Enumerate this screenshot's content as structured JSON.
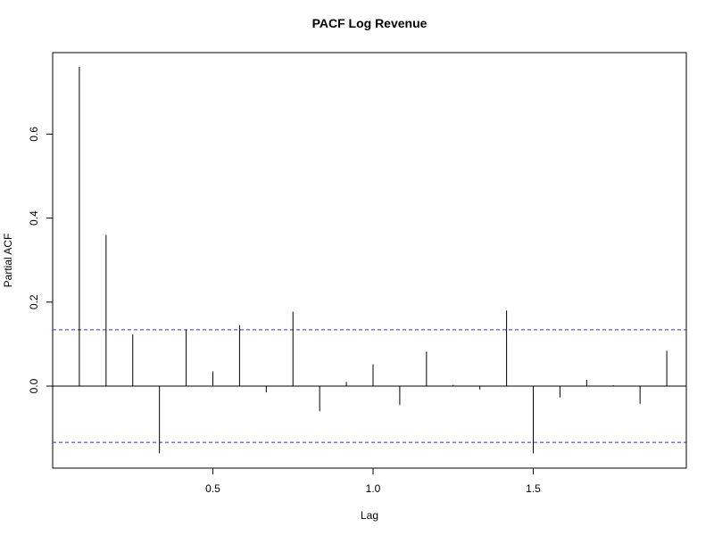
{
  "chart_data": {
    "type": "bar",
    "title": "PACF Log Revenue",
    "xlabel": "Lag",
    "ylabel": "Partial ACF",
    "xlim": [
      0.0,
      1.96
    ],
    "ylim": [
      -0.195,
      0.78
    ],
    "x_ticks": [
      0.5,
      1.0,
      1.5
    ],
    "x_tick_labels": [
      "0.5",
      "1.0",
      "1.5"
    ],
    "y_ticks": [
      0.0,
      0.2,
      0.4,
      0.6
    ],
    "y_tick_labels": [
      "0.0",
      "0.2",
      "0.4",
      "0.6"
    ],
    "confidence_bound": 0.134,
    "bound_color": "#3333cc",
    "line_color": "#000000",
    "grid": false,
    "x": [
      0.0833,
      0.1667,
      0.25,
      0.3333,
      0.4167,
      0.5,
      0.5833,
      0.6667,
      0.75,
      0.8333,
      0.9167,
      1.0,
      1.0833,
      1.1667,
      1.25,
      1.3333,
      1.4167,
      1.5,
      1.5833,
      1.6667,
      1.75,
      1.8333,
      1.9167
    ],
    "values": [
      0.76,
      0.36,
      0.123,
      -0.16,
      0.135,
      0.035,
      0.145,
      -0.015,
      0.177,
      -0.06,
      0.01,
      0.052,
      -0.045,
      0.082,
      0.003,
      -0.008,
      0.18,
      -0.16,
      -0.027,
      0.015,
      0.002,
      -0.042,
      0.084
    ]
  }
}
